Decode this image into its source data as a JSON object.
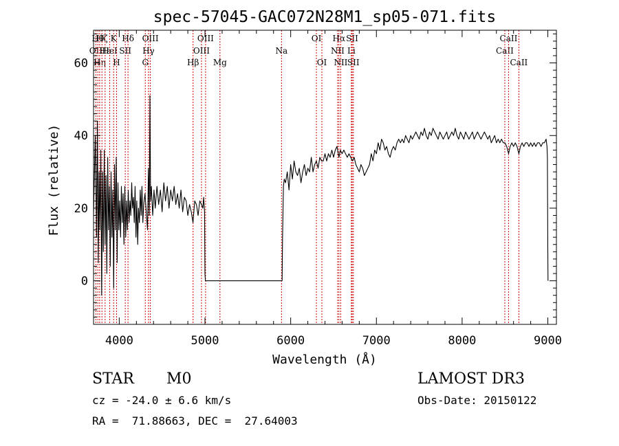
{
  "chart_data": {
    "type": "line",
    "title": "spec-57045-GAC072N28M1_sp05-071.fits",
    "xlabel": "Wavelength (Å)",
    "ylabel": "Flux (relative)",
    "xlim": [
      3700,
      9100
    ],
    "ylim": [
      -12,
      69
    ],
    "xticks": [
      4000,
      5000,
      6000,
      7000,
      8000,
      9000
    ],
    "yticks": [
      0,
      20,
      40,
      60
    ],
    "grid": false,
    "line_color": "#000000",
    "marker_color": "#cc0000",
    "series": [
      {
        "points": [
          [
            3700,
            18
          ],
          [
            3720,
            40
          ],
          [
            3735,
            12
          ],
          [
            3745,
            44
          ],
          [
            3755,
            5
          ],
          [
            3765,
            30
          ],
          [
            3775,
            14
          ],
          [
            3785,
            36
          ],
          [
            3795,
            -4
          ],
          [
            3805,
            30
          ],
          [
            3815,
            8
          ],
          [
            3825,
            36
          ],
          [
            3835,
            10
          ],
          [
            3845,
            29
          ],
          [
            3855,
            2
          ],
          [
            3865,
            34
          ],
          [
            3875,
            14
          ],
          [
            3885,
            26
          ],
          [
            3895,
            4
          ],
          [
            3905,
            30
          ],
          [
            3915,
            12
          ],
          [
            3925,
            25
          ],
          [
            3935,
            -2
          ],
          [
            3945,
            32
          ],
          [
            3955,
            14
          ],
          [
            3965,
            34
          ],
          [
            3975,
            5
          ],
          [
            3985,
            27
          ],
          [
            3995,
            14
          ],
          [
            4005,
            22
          ],
          [
            4015,
            12
          ],
          [
            4025,
            26
          ],
          [
            4035,
            16
          ],
          [
            4045,
            24
          ],
          [
            4055,
            10
          ],
          [
            4065,
            26
          ],
          [
            4075,
            12
          ],
          [
            4085,
            22
          ],
          [
            4095,
            14
          ],
          [
            4105,
            25
          ],
          [
            4115,
            16
          ],
          [
            4125,
            22
          ],
          [
            4135,
            18
          ],
          [
            4145,
            27
          ],
          [
            4155,
            20
          ],
          [
            4165,
            23
          ],
          [
            4175,
            16
          ],
          [
            4185,
            26
          ],
          [
            4195,
            12
          ],
          [
            4205,
            22
          ],
          [
            4215,
            10
          ],
          [
            4225,
            20
          ],
          [
            4235,
            16
          ],
          [
            4245,
            25
          ],
          [
            4255,
            18
          ],
          [
            4265,
            26
          ],
          [
            4275,
            16
          ],
          [
            4285,
            21
          ],
          [
            4300,
            24
          ],
          [
            4315,
            19
          ],
          [
            4330,
            14
          ],
          [
            4340,
            31
          ],
          [
            4350,
            18
          ],
          [
            4358,
            51
          ],
          [
            4365,
            22
          ],
          [
            4375,
            26
          ],
          [
            4390,
            18
          ],
          [
            4405,
            25
          ],
          [
            4420,
            20
          ],
          [
            4440,
            26
          ],
          [
            4460,
            21
          ],
          [
            4480,
            25
          ],
          [
            4500,
            19
          ],
          [
            4520,
            27
          ],
          [
            4540,
            22
          ],
          [
            4560,
            26
          ],
          [
            4580,
            20
          ],
          [
            4600,
            25
          ],
          [
            4620,
            22
          ],
          [
            4640,
            26
          ],
          [
            4660,
            21
          ],
          [
            4680,
            24
          ],
          [
            4700,
            20
          ],
          [
            4720,
            25
          ],
          [
            4740,
            19
          ],
          [
            4760,
            23
          ],
          [
            4780,
            22
          ],
          [
            4800,
            18
          ],
          [
            4820,
            21
          ],
          [
            4840,
            19
          ],
          [
            4860,
            16
          ],
          [
            4880,
            22
          ],
          [
            4900,
            21
          ],
          [
            4920,
            18
          ],
          [
            4940,
            22
          ],
          [
            4960,
            21
          ],
          [
            4975,
            20
          ],
          [
            4985,
            23
          ],
          [
            4995,
            19
          ],
          [
            5000,
            2
          ],
          [
            5005,
            0
          ],
          [
            5900,
            0
          ],
          [
            5905,
            12
          ],
          [
            5915,
            26
          ],
          [
            5925,
            28
          ],
          [
            5940,
            27
          ],
          [
            5960,
            30
          ],
          [
            5980,
            25
          ],
          [
            6000,
            32
          ],
          [
            6020,
            28
          ],
          [
            6040,
            33
          ],
          [
            6060,
            30
          ],
          [
            6080,
            29
          ],
          [
            6100,
            31
          ],
          [
            6120,
            27
          ],
          [
            6140,
            30
          ],
          [
            6160,
            32
          ],
          [
            6180,
            29
          ],
          [
            6200,
            31
          ],
          [
            6220,
            30
          ],
          [
            6240,
            34
          ],
          [
            6260,
            30
          ],
          [
            6280,
            32
          ],
          [
            6300,
            33
          ],
          [
            6320,
            31
          ],
          [
            6340,
            34
          ],
          [
            6360,
            33
          ],
          [
            6380,
            33
          ],
          [
            6400,
            35
          ],
          [
            6420,
            33
          ],
          [
            6440,
            35
          ],
          [
            6460,
            34
          ],
          [
            6480,
            36
          ],
          [
            6500,
            34
          ],
          [
            6520,
            36
          ],
          [
            6540,
            37
          ],
          [
            6563,
            34
          ],
          [
            6580,
            36
          ],
          [
            6600,
            35
          ],
          [
            6620,
            36
          ],
          [
            6640,
            35
          ],
          [
            6660,
            34
          ],
          [
            6680,
            35
          ],
          [
            6700,
            34
          ],
          [
            6720,
            33
          ],
          [
            6740,
            34
          ],
          [
            6760,
            32
          ],
          [
            6780,
            31
          ],
          [
            6800,
            30
          ],
          [
            6820,
            32
          ],
          [
            6840,
            31
          ],
          [
            6860,
            29
          ],
          [
            6880,
            30
          ],
          [
            6900,
            31
          ],
          [
            6920,
            32
          ],
          [
            6940,
            35
          ],
          [
            6960,
            33
          ],
          [
            6980,
            36
          ],
          [
            7000,
            35
          ],
          [
            7020,
            38
          ],
          [
            7040,
            36
          ],
          [
            7060,
            39
          ],
          [
            7080,
            38
          ],
          [
            7100,
            36
          ],
          [
            7120,
            37
          ],
          [
            7140,
            35
          ],
          [
            7160,
            34
          ],
          [
            7180,
            36
          ],
          [
            7200,
            37
          ],
          [
            7220,
            36
          ],
          [
            7240,
            38
          ],
          [
            7260,
            39
          ],
          [
            7280,
            38
          ],
          [
            7300,
            39
          ],
          [
            7320,
            38
          ],
          [
            7340,
            40
          ],
          [
            7360,
            39
          ],
          [
            7380,
            38
          ],
          [
            7400,
            40
          ],
          [
            7420,
            39
          ],
          [
            7440,
            40
          ],
          [
            7460,
            41
          ],
          [
            7480,
            40
          ],
          [
            7500,
            39
          ],
          [
            7520,
            41
          ],
          [
            7540,
            40
          ],
          [
            7560,
            42
          ],
          [
            7580,
            40
          ],
          [
            7600,
            39
          ],
          [
            7620,
            41
          ],
          [
            7640,
            40
          ],
          [
            7660,
            42
          ],
          [
            7680,
            41
          ],
          [
            7700,
            40
          ],
          [
            7720,
            39
          ],
          [
            7740,
            41
          ],
          [
            7760,
            40
          ],
          [
            7780,
            39
          ],
          [
            7800,
            40
          ],
          [
            7820,
            41
          ],
          [
            7840,
            39
          ],
          [
            7860,
            40
          ],
          [
            7880,
            41
          ],
          [
            7900,
            40
          ],
          [
            7920,
            42
          ],
          [
            7940,
            40
          ],
          [
            7960,
            39
          ],
          [
            7980,
            41
          ],
          [
            8000,
            40
          ],
          [
            8020,
            39
          ],
          [
            8040,
            41
          ],
          [
            8060,
            40
          ],
          [
            8080,
            39
          ],
          [
            8100,
            40
          ],
          [
            8120,
            41
          ],
          [
            8140,
            39
          ],
          [
            8160,
            40
          ],
          [
            8180,
            41
          ],
          [
            8200,
            40
          ],
          [
            8220,
            39
          ],
          [
            8240,
            40
          ],
          [
            8260,
            41
          ],
          [
            8280,
            40
          ],
          [
            8300,
            39
          ],
          [
            8320,
            40
          ],
          [
            8340,
            38
          ],
          [
            8360,
            39
          ],
          [
            8380,
            40
          ],
          [
            8400,
            38
          ],
          [
            8420,
            39
          ],
          [
            8440,
            38
          ],
          [
            8460,
            39
          ],
          [
            8480,
            38
          ],
          [
            8500,
            38
          ],
          [
            8520,
            37
          ],
          [
            8542,
            35
          ],
          [
            8560,
            37
          ],
          [
            8580,
            38
          ],
          [
            8600,
            37
          ],
          [
            8620,
            38
          ],
          [
            8640,
            37
          ],
          [
            8662,
            35
          ],
          [
            8680,
            37
          ],
          [
            8700,
            38
          ],
          [
            8720,
            37
          ],
          [
            8740,
            38
          ],
          [
            8760,
            38
          ],
          [
            8780,
            37
          ],
          [
            8800,
            38
          ],
          [
            8820,
            37
          ],
          [
            8840,
            38
          ],
          [
            8860,
            37
          ],
          [
            8880,
            38
          ],
          [
            8900,
            38
          ],
          [
            8920,
            37
          ],
          [
            8940,
            38
          ],
          [
            8960,
            38
          ],
          [
            8980,
            39
          ],
          [
            8990,
            37
          ],
          [
            8995,
            34
          ],
          [
            9000,
            8
          ],
          [
            9002,
            0
          ]
        ]
      }
    ],
    "lines": [
      {
        "wave": 3727,
        "labels": [
          "OII"
        ],
        "row": 1
      },
      {
        "wave": 3750,
        "labels": [
          "Hθ"
        ],
        "row": 0
      },
      {
        "wave": 3771,
        "labels": [
          "Hη"
        ],
        "row": 2
      },
      {
        "wave": 3798,
        "labels": [
          "Hζ"
        ],
        "row": 0
      },
      {
        "wave": 3835,
        "labels": [
          "Hε"
        ],
        "row": 1
      },
      {
        "wave": 3889,
        "labels": [
          "HeI"
        ],
        "row": 1
      },
      {
        "wave": 3934,
        "labels": [
          "K"
        ],
        "row": 0
      },
      {
        "wave": 3969,
        "labels": [
          "H"
        ],
        "row": 2
      },
      {
        "wave": 4070,
        "labels": [
          "SII"
        ],
        "row": 1
      },
      {
        "wave": 4102,
        "labels": [
          "Hδ"
        ],
        "row": 0
      },
      {
        "wave": 4304,
        "labels": [
          "G"
        ],
        "row": 2
      },
      {
        "wave": 4341,
        "labels": [
          "Hγ"
        ],
        "row": 1
      },
      {
        "wave": 4363,
        "labels": [
          "OIII"
        ],
        "row": 0
      },
      {
        "wave": 4861,
        "labels": [
          "Hβ"
        ],
        "row": 2
      },
      {
        "wave": 4959,
        "labels": [
          "OIII"
        ],
        "row": 1
      },
      {
        "wave": 5007,
        "labels": [
          "OIII"
        ],
        "row": 0
      },
      {
        "wave": 5175,
        "labels": [
          "Mg"
        ],
        "row": 2
      },
      {
        "wave": 5893,
        "labels": [
          "Na"
        ],
        "row": 1
      },
      {
        "wave": 6300,
        "labels": [
          "OI"
        ],
        "row": 0
      },
      {
        "wave": 6364,
        "labels": [
          "OI"
        ],
        "row": 2
      },
      {
        "wave": 6548,
        "labels": [
          "NII"
        ],
        "row": 1
      },
      {
        "wave": 6563,
        "labels": [
          "Hα"
        ],
        "row": 0
      },
      {
        "wave": 6584,
        "labels": [
          "NII"
        ],
        "row": 2
      },
      {
        "wave": 6708,
        "labels": [
          "Li"
        ],
        "row": 1
      },
      {
        "wave": 6717,
        "labels": [
          "SII"
        ],
        "row": 0
      },
      {
        "wave": 6731,
        "labels": [
          "SII"
        ],
        "row": 2
      },
      {
        "wave": 8498,
        "labels": [
          "CaII"
        ],
        "row": 1
      },
      {
        "wave": 8542,
        "labels": [
          "CaII"
        ],
        "row": 0
      },
      {
        "wave": 8662,
        "labels": [
          "CaII"
        ],
        "row": 2
      }
    ]
  },
  "info": {
    "class": "STAR",
    "subclass": "M0",
    "survey": "LAMOST DR3",
    "cz": "cz = -24.0 ± 6.6 km/s",
    "obs_date": "Obs-Date: 20150122",
    "coords": "RA =  71.88663, DEC =  27.64003"
  }
}
